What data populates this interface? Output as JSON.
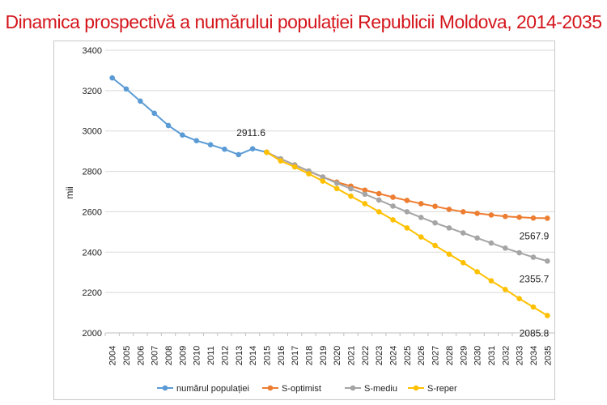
{
  "chart_data": {
    "type": "line",
    "title": "Dinamica prospectivă a numărului populației Republicii Moldova, 2014-2035",
    "ylabel": "mii",
    "ylim": [
      2000,
      3400
    ],
    "yticks": [
      "2000",
      "2200",
      "2400",
      "2600",
      "2800",
      "3000",
      "3200",
      "3400"
    ],
    "grid": true,
    "legend_position": "bottom",
    "categories": [
      "2004",
      "2005",
      "2006",
      "2007",
      "2008",
      "2009",
      "2010",
      "2011",
      "2012",
      "2013",
      "2014",
      "2015",
      "2016",
      "2017",
      "2018",
      "2019",
      "2020",
      "2021",
      "2022",
      "2023",
      "2024",
      "2025",
      "2026",
      "2027",
      "2028",
      "2029",
      "2030",
      "2031",
      "2032",
      "2033",
      "2034",
      "2035"
    ],
    "series": [
      {
        "name": "numărul populației",
        "color": "#5b9bd5",
        "values": [
          3263,
          3208,
          3148,
          3088,
          3027,
          2980,
          2952,
          2932,
          2910,
          2883,
          2912,
          2895,
          null,
          null,
          null,
          null,
          null,
          null,
          null,
          null,
          null,
          null,
          null,
          null,
          null,
          null,
          null,
          null,
          null,
          null,
          null,
          null
        ]
      },
      {
        "name": "S-optimist",
        "color": "#ed7d31",
        "values": [
          null,
          null,
          null,
          null,
          null,
          null,
          null,
          null,
          null,
          null,
          null,
          2895,
          2862,
          2832,
          2800,
          2772,
          2747,
          2727,
          2707,
          2690,
          2672,
          2656,
          2640,
          2627,
          2612,
          2600,
          2592,
          2584,
          2577,
          2573,
          2569,
          2567.9
        ]
      },
      {
        "name": "S-mediu",
        "color": "#a5a5a5",
        "values": [
          null,
          null,
          null,
          null,
          null,
          null,
          null,
          null,
          null,
          null,
          null,
          2895,
          2862,
          2832,
          2802,
          2772,
          2742,
          2714,
          2687,
          2658,
          2628,
          2600,
          2572,
          2545,
          2520,
          2495,
          2470,
          2445,
          2420,
          2397,
          2375,
          2355.7
        ]
      },
      {
        "name": "S-reper",
        "color": "#ffc000",
        "values": [
          null,
          null,
          null,
          null,
          null,
          null,
          null,
          null,
          null,
          null,
          null,
          2895,
          2852,
          2822,
          2788,
          2752,
          2715,
          2677,
          2640,
          2600,
          2560,
          2520,
          2475,
          2433,
          2390,
          2348,
          2303,
          2258,
          2215,
          2170,
          2128,
          2085.8
        ]
      }
    ],
    "annotations": [
      {
        "text": "2911.6",
        "x": "2014",
        "y": 2911.6
      },
      {
        "text": "2567.9",
        "x": "2035",
        "y": 2567.9
      },
      {
        "text": "2355.7",
        "x": "2035",
        "y": 2355.7
      },
      {
        "text": "2085.8",
        "x": "2035",
        "y": 2085.8
      }
    ]
  }
}
